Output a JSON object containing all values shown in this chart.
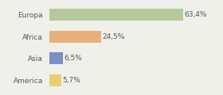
{
  "categories": [
    "Europa",
    "Africa",
    "Asia",
    "America"
  ],
  "values": [
    63.4,
    24.5,
    6.5,
    5.7
  ],
  "labels": [
    "63,4%",
    "24,5%",
    "6,5%",
    "5,7%"
  ],
  "bar_colors": [
    "#b5c99a",
    "#e8b07a",
    "#7b8ec8",
    "#e8d070"
  ],
  "background_color": "#f0f0eb",
  "xlim": [
    0,
    80
  ],
  "bar_height": 0.55,
  "label_fontsize": 6.5,
  "tick_fontsize": 6.5,
  "figsize": [
    2.8,
    1.2
  ],
  "dpi": 100
}
